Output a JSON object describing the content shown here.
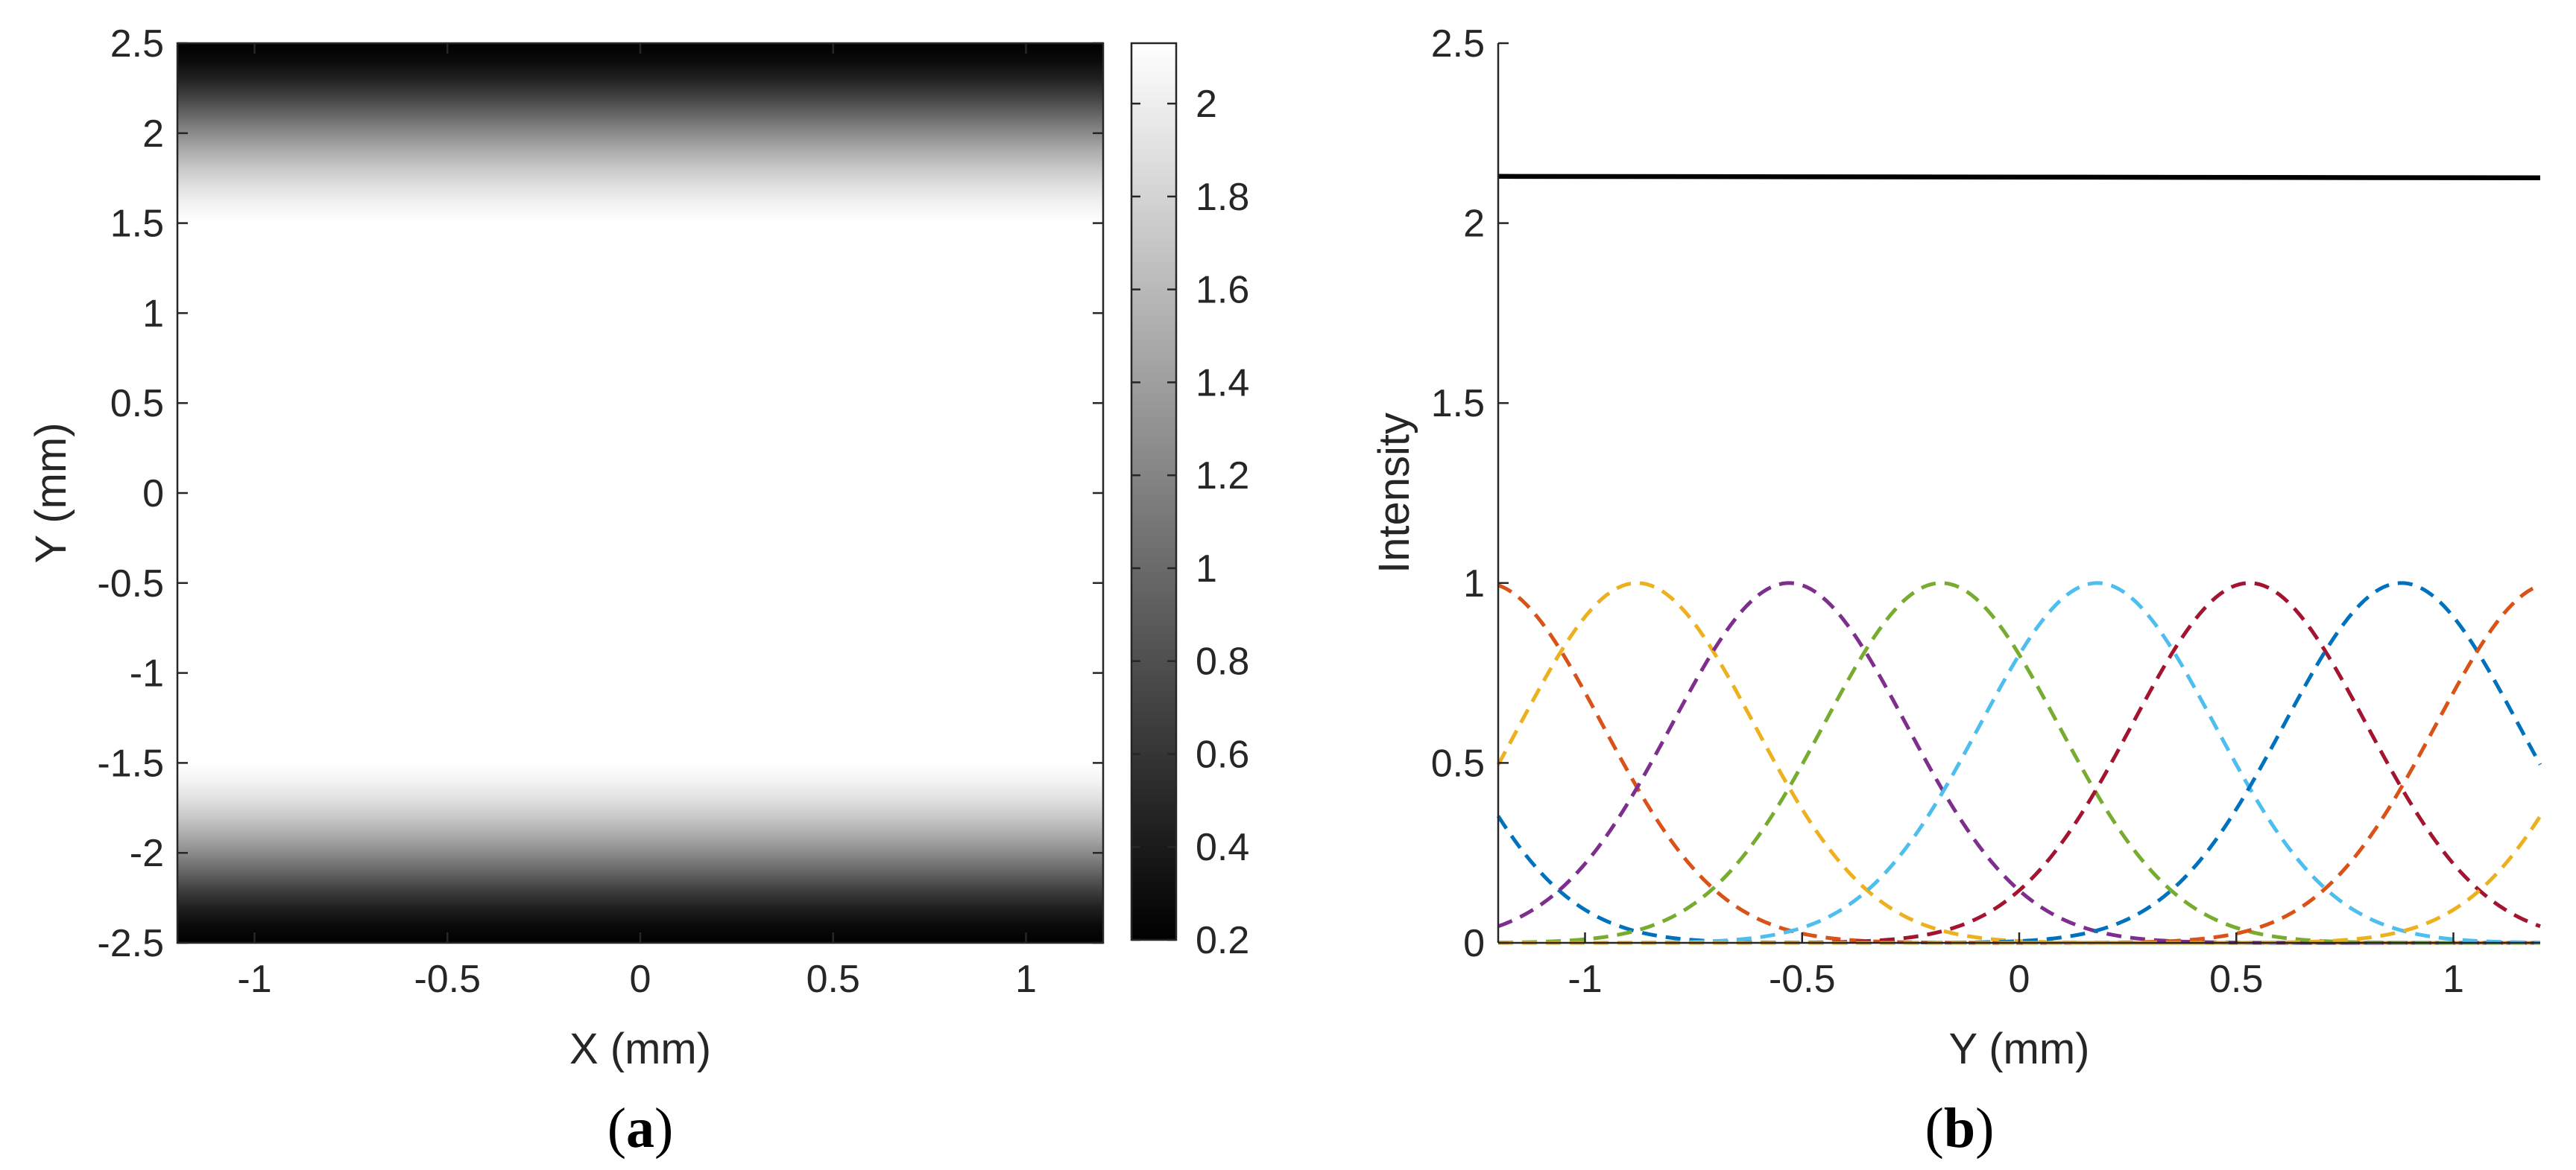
{
  "panels": [
    {
      "caption_open": "(",
      "caption_letter": "a",
      "caption_close": ")"
    },
    {
      "caption_open": "(",
      "caption_letter": "b",
      "caption_close": ")"
    }
  ],
  "chart_data": [
    {
      "type": "heatmap",
      "panel": "a",
      "xlabel": "X (mm)",
      "ylabel": "Y (mm)",
      "xlim": [
        -1.2,
        1.2
      ],
      "ylim": [
        -2.5,
        2.5
      ],
      "xticks": [
        -1,
        -0.5,
        0,
        0.5,
        1
      ],
      "xtick_labels": [
        "-1",
        "-0.5",
        "0",
        "0.5",
        "1"
      ],
      "yticks": [
        2.5,
        2,
        1.5,
        1,
        0.5,
        0,
        -0.5,
        -1,
        -1.5,
        -2,
        -2.5
      ],
      "ytick_labels": [
        "2.5",
        "2",
        "1.5",
        "1",
        "0.5",
        "0",
        "-0.5",
        "-1",
        "-1.5",
        "-2",
        "-2.5"
      ],
      "colormap": "gray",
      "colorbar": {
        "range": [
          0.2,
          2.13
        ],
        "ticks": [
          2,
          1.8,
          1.6,
          1.4,
          1.2,
          1,
          0.8,
          0.6,
          0.4,
          0.2
        ],
        "tick_labels": [
          "2",
          "1.8",
          "1.6",
          "1.4",
          "1.2",
          "1",
          "0.8",
          "0.6",
          "0.4",
          "0.2"
        ]
      },
      "profile_y": [
        -2.5,
        -2.4,
        -2.3,
        -2.2,
        -2.1,
        -2.0,
        -1.9,
        -1.8,
        -1.7,
        -1.6,
        -1.5,
        1.5,
        1.6,
        1.7,
        1.8,
        1.9,
        2.0,
        2.1,
        2.2,
        2.3,
        2.4,
        2.5
      ],
      "profile_intensity": [
        0.2,
        0.28,
        0.45,
        0.7,
        0.98,
        1.25,
        1.5,
        1.72,
        1.9,
        2.04,
        2.13,
        2.13,
        2.04,
        1.9,
        1.72,
        1.5,
        1.25,
        0.98,
        0.7,
        0.45,
        0.28,
        0.2
      ]
    },
    {
      "type": "line",
      "panel": "b",
      "xlabel": "Y (mm)",
      "ylabel": "Intensity",
      "xlim": [
        -1.2,
        1.2
      ],
      "ylim": [
        0,
        2.5
      ],
      "xticks": [
        -1,
        -0.5,
        0,
        0.5,
        1
      ],
      "xtick_labels": [
        "-1",
        "-0.5",
        "0",
        "0.5",
        "1"
      ],
      "yticks": [
        0,
        0.5,
        1,
        1.5,
        2,
        2.5
      ],
      "ytick_labels": [
        "0",
        "0.5",
        "1",
        "1.5",
        "2",
        "2.5"
      ],
      "total": {
        "value": 2.13,
        "color": "#000000",
        "style": "solid"
      },
      "beam_sigma_mm": 0.27,
      "series": [
        {
          "center": -1.59,
          "color": "#0072BD",
          "style": "dashed"
        },
        {
          "center": -1.23,
          "color": "#D95319",
          "style": "dashed"
        },
        {
          "center": -0.88,
          "color": "#EDB120",
          "style": "dashed"
        },
        {
          "center": -0.53,
          "color": "#7E2F8E",
          "style": "dashed"
        },
        {
          "center": -0.18,
          "color": "#77AC30",
          "style": "dashed"
        },
        {
          "center": 0.18,
          "color": "#4DBEEE",
          "style": "dashed"
        },
        {
          "center": 0.53,
          "color": "#A2142F",
          "style": "dashed"
        },
        {
          "center": 0.88,
          "color": "#0072BD",
          "style": "dashed"
        },
        {
          "center": 1.23,
          "color": "#D95319",
          "style": "dashed"
        },
        {
          "center": 1.59,
          "color": "#EDB120",
          "style": "dashed"
        }
      ]
    }
  ]
}
